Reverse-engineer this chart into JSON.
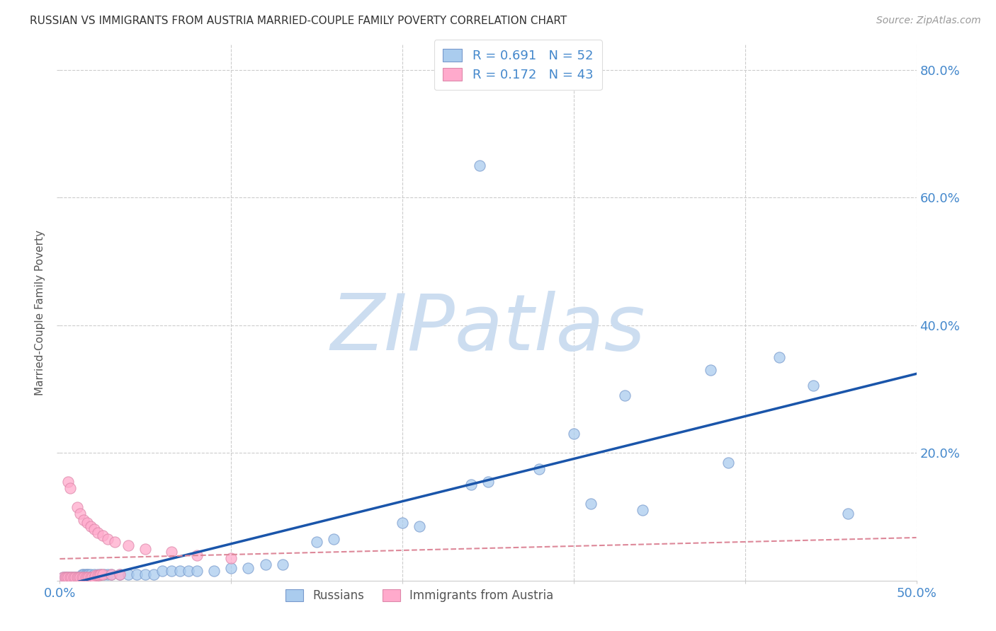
{
  "title": "RUSSIAN VS IMMIGRANTS FROM AUSTRIA MARRIED-COUPLE FAMILY POVERTY CORRELATION CHART",
  "source": "Source: ZipAtlas.com",
  "ylabel": "Married-Couple Family Poverty",
  "xlim": [
    0.0,
    0.5
  ],
  "ylim": [
    0.0,
    0.84
  ],
  "background_color": "#ffffff",
  "watermark_text": "ZIPatlas",
  "watermark_color": "#ccddf0",
  "grid_color": "#cccccc",
  "title_color": "#333333",
  "tick_color": "#4488cc",
  "russian_color": "#aaccee",
  "russian_edge_color": "#7799cc",
  "austria_color": "#ffaacc",
  "austria_edge_color": "#dd88aa",
  "russian_line_color": "#1a55aa",
  "austria_line_color": "#dd8899",
  "russians_label": "Russians",
  "austria_label": "Immigrants from Austria",
  "russian_scatter": [
    [
      0.002,
      0.005
    ],
    [
      0.003,
      0.005
    ],
    [
      0.004,
      0.005
    ],
    [
      0.005,
      0.005
    ],
    [
      0.006,
      0.005
    ],
    [
      0.007,
      0.005
    ],
    [
      0.008,
      0.005
    ],
    [
      0.009,
      0.005
    ],
    [
      0.01,
      0.005
    ],
    [
      0.011,
      0.005
    ],
    [
      0.012,
      0.005
    ],
    [
      0.013,
      0.01
    ],
    [
      0.014,
      0.01
    ],
    [
      0.015,
      0.01
    ],
    [
      0.016,
      0.01
    ],
    [
      0.017,
      0.01
    ],
    [
      0.018,
      0.01
    ],
    [
      0.02,
      0.01
    ],
    [
      0.022,
      0.01
    ],
    [
      0.024,
      0.01
    ],
    [
      0.026,
      0.01
    ],
    [
      0.028,
      0.01
    ],
    [
      0.03,
      0.01
    ],
    [
      0.035,
      0.01
    ],
    [
      0.04,
      0.01
    ],
    [
      0.045,
      0.01
    ],
    [
      0.05,
      0.01
    ],
    [
      0.055,
      0.01
    ],
    [
      0.06,
      0.015
    ],
    [
      0.065,
      0.015
    ],
    [
      0.07,
      0.015
    ],
    [
      0.075,
      0.015
    ],
    [
      0.08,
      0.015
    ],
    [
      0.09,
      0.015
    ],
    [
      0.1,
      0.02
    ],
    [
      0.11,
      0.02
    ],
    [
      0.12,
      0.025
    ],
    [
      0.13,
      0.025
    ],
    [
      0.15,
      0.06
    ],
    [
      0.16,
      0.065
    ],
    [
      0.2,
      0.09
    ],
    [
      0.21,
      0.085
    ],
    [
      0.24,
      0.15
    ],
    [
      0.25,
      0.155
    ],
    [
      0.28,
      0.175
    ],
    [
      0.3,
      0.23
    ],
    [
      0.31,
      0.12
    ],
    [
      0.33,
      0.29
    ],
    [
      0.34,
      0.11
    ],
    [
      0.38,
      0.33
    ],
    [
      0.39,
      0.185
    ],
    [
      0.42,
      0.35
    ],
    [
      0.44,
      0.305
    ],
    [
      0.46,
      0.105
    ],
    [
      0.245,
      0.65
    ]
  ],
  "austria_scatter": [
    [
      0.002,
      0.005
    ],
    [
      0.003,
      0.005
    ],
    [
      0.004,
      0.005
    ],
    [
      0.005,
      0.005
    ],
    [
      0.006,
      0.005
    ],
    [
      0.007,
      0.005
    ],
    [
      0.008,
      0.005
    ],
    [
      0.009,
      0.005
    ],
    [
      0.01,
      0.005
    ],
    [
      0.011,
      0.005
    ],
    [
      0.012,
      0.005
    ],
    [
      0.013,
      0.005
    ],
    [
      0.014,
      0.005
    ],
    [
      0.015,
      0.005
    ],
    [
      0.016,
      0.005
    ],
    [
      0.017,
      0.005
    ],
    [
      0.018,
      0.005
    ],
    [
      0.019,
      0.005
    ],
    [
      0.02,
      0.005
    ],
    [
      0.021,
      0.008
    ],
    [
      0.022,
      0.008
    ],
    [
      0.023,
      0.008
    ],
    [
      0.024,
      0.01
    ],
    [
      0.025,
      0.01
    ],
    [
      0.03,
      0.01
    ],
    [
      0.035,
      0.01
    ],
    [
      0.005,
      0.155
    ],
    [
      0.006,
      0.145
    ],
    [
      0.01,
      0.115
    ],
    [
      0.012,
      0.105
    ],
    [
      0.014,
      0.095
    ],
    [
      0.016,
      0.09
    ],
    [
      0.018,
      0.085
    ],
    [
      0.02,
      0.08
    ],
    [
      0.022,
      0.075
    ],
    [
      0.025,
      0.07
    ],
    [
      0.028,
      0.065
    ],
    [
      0.032,
      0.06
    ],
    [
      0.04,
      0.055
    ],
    [
      0.05,
      0.05
    ],
    [
      0.065,
      0.045
    ],
    [
      0.08,
      0.04
    ],
    [
      0.1,
      0.035
    ]
  ]
}
